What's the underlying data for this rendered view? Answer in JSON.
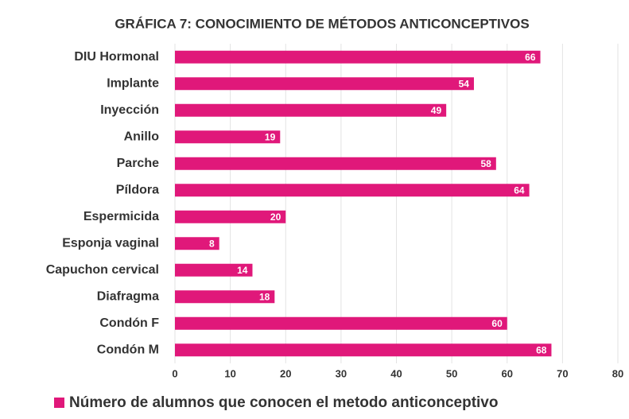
{
  "chart_data": {
    "type": "barh",
    "title": "GRÁFICA 7: CONOCIMIENTO DE MÉTODOS ANTICONCEPTIVOS",
    "categories": [
      "DIU Hormonal",
      "Implante",
      "Inyección",
      "Anillo",
      "Parche",
      "Píldora",
      "Espermicida",
      "Esponja vaginal",
      "Capuchon cervical",
      "Diafragma",
      "Condón F",
      "Condón M"
    ],
    "series": [
      {
        "name": "Número de alumnos que conocen el metodo anticonceptivo",
        "color": "#e0187a",
        "values": [
          66,
          54,
          49,
          19,
          58,
          64,
          20,
          8,
          14,
          18,
          60,
          68
        ]
      }
    ],
    "xlim": [
      0,
      80
    ],
    "xticks": [
      0,
      10,
      20,
      30,
      40,
      50,
      60,
      70,
      80
    ],
    "grid": true,
    "legend": "bottom"
  }
}
